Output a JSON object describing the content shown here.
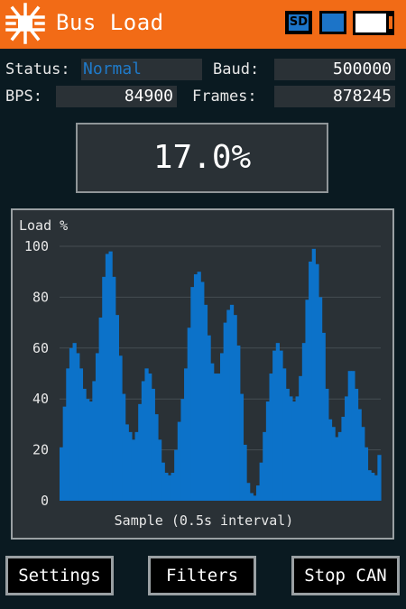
{
  "header": {
    "title": "Bus Load",
    "sd_label": "SD",
    "logo_icon": "can-bus-logo-icon",
    "battery_level": 0.85,
    "accent_color": "#f26b16"
  },
  "stats": {
    "status_label": "Status:",
    "status_value": "Normal",
    "baud_label": "Baud:",
    "baud_value": "500000",
    "bps_label": "BPS:",
    "bps_value": "84900",
    "frames_label": "Frames:",
    "frames_value": "878245"
  },
  "load_display": "17.0%",
  "chart_data": {
    "type": "bar",
    "ylabel": "Load %",
    "xlabel": "Sample (0.5s interval)",
    "ylim": [
      0,
      100
    ],
    "yticks": [
      0,
      20,
      40,
      60,
      80,
      100
    ],
    "grid": true,
    "values": [
      21,
      37,
      52,
      60,
      62,
      58,
      52,
      44,
      40,
      39,
      47,
      58,
      72,
      88,
      97,
      98,
      88,
      73,
      57,
      42,
      30,
      27,
      24,
      27,
      38,
      47,
      52,
      50,
      44,
      34,
      24,
      15,
      11,
      10,
      11,
      20,
      31,
      40,
      52,
      68,
      84,
      89,
      90,
      86,
      77,
      65,
      54,
      50,
      50,
      58,
      70,
      75,
      77,
      73,
      61,
      42,
      22,
      7,
      3,
      2,
      6,
      15,
      27,
      39,
      50,
      59,
      62,
      59,
      52,
      44,
      41,
      39,
      41,
      49,
      62,
      79,
      94,
      99,
      93,
      80,
      66,
      44,
      32,
      29,
      25,
      27,
      33,
      41,
      51,
      51,
      44,
      36,
      29,
      21,
      12,
      11,
      10,
      18
    ]
  },
  "buttons": {
    "settings": "Settings",
    "filters": "Filters",
    "stop": "Stop CAN"
  }
}
